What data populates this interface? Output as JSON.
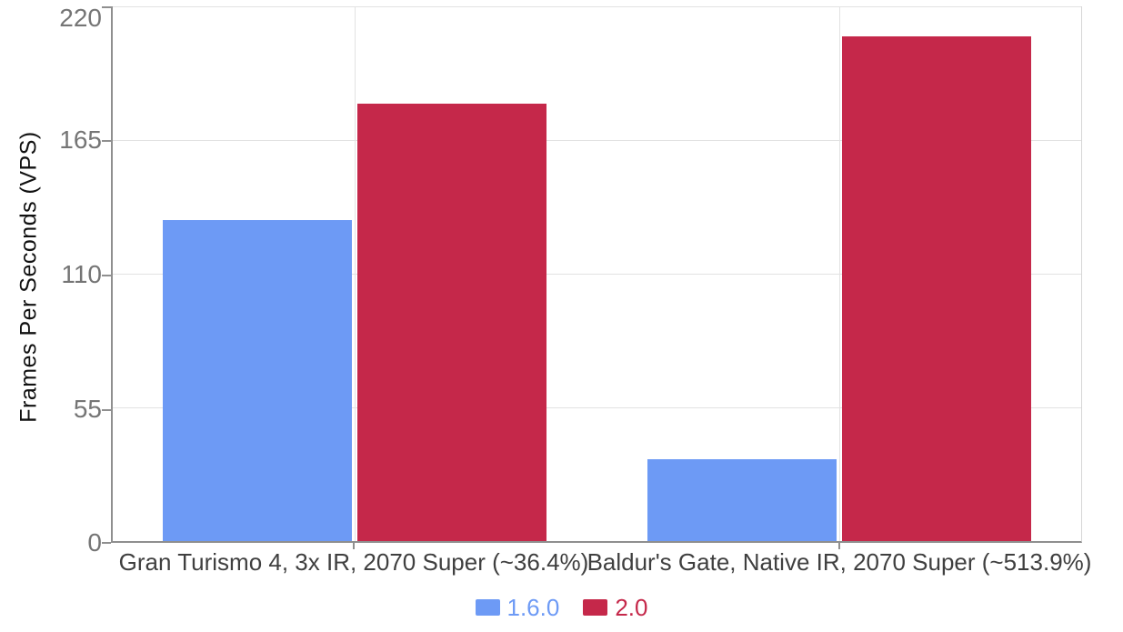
{
  "chart_data": {
    "type": "bar",
    "title": "",
    "xlabel": "",
    "ylabel": "Frames Per Seconds (VPS)",
    "ylim": [
      0,
      220
    ],
    "yticks": [
      0,
      55,
      110,
      165,
      220
    ],
    "grid": true,
    "legend_position": "bottom",
    "categories": [
      "Gran Turismo 4, 3x IR, 2070 Super (~36.4%)",
      "Baldur's Gate, Native IR, 2070 Super (~513.9%)"
    ],
    "series": [
      {
        "name": "1.6.0",
        "color": "#6d9af5",
        "values": [
          132,
          33.8
        ]
      },
      {
        "name": "2.0",
        "color": "#c5284a",
        "values": [
          180,
          207.5
        ]
      }
    ],
    "colors": {
      "axis": "#8f8f8f",
      "gridline": "#e2e2e2",
      "tick_text": "#757575",
      "category_text": "#3f3f3f"
    }
  }
}
